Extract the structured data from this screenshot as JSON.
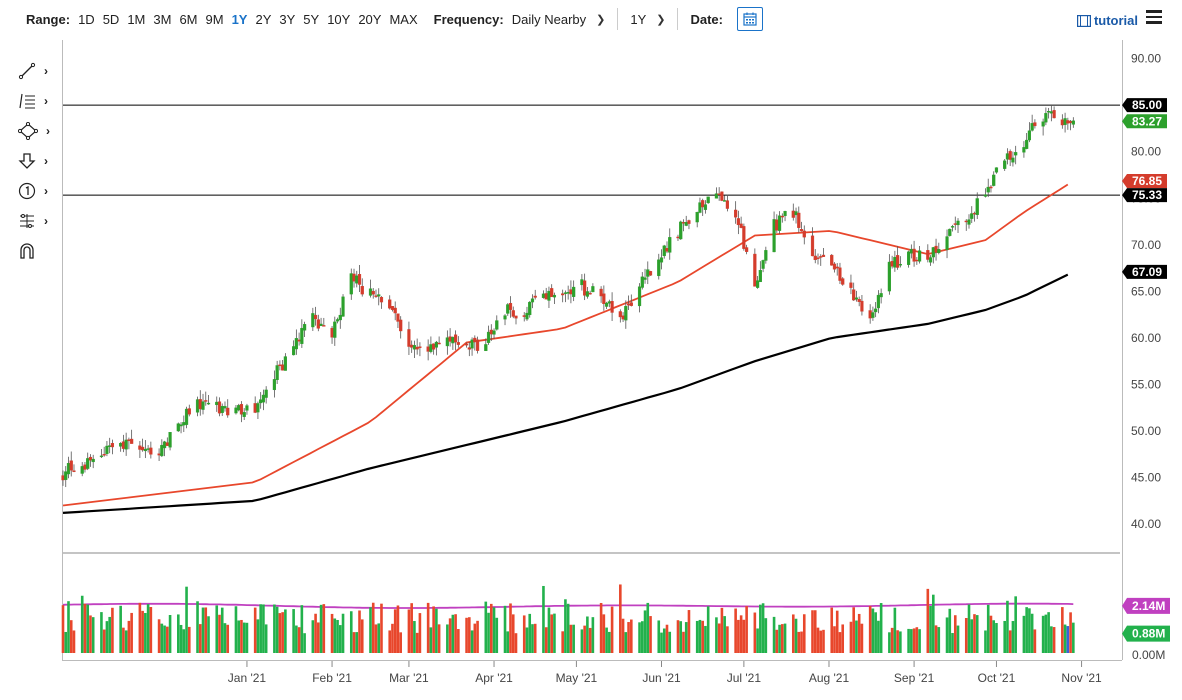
{
  "toolbar": {
    "range_label": "Range:",
    "ranges": [
      "1D",
      "5D",
      "1M",
      "3M",
      "6M",
      "9M",
      "1Y",
      "2Y",
      "3Y",
      "5Y",
      "10Y",
      "20Y",
      "MAX"
    ],
    "active_range": "1Y",
    "frequency_label": "Frequency:",
    "frequency_value": "Daily Nearby",
    "period_value": "1Y",
    "date_label": "Date:",
    "tutorial_label": "tutorial"
  },
  "colors": {
    "up": "#2ca02c",
    "down": "#d43c2c",
    "ma50": "#e8472c",
    "ma200": "#000000",
    "volume_avg": "#c040c0",
    "volume_up": "#22b14c",
    "volume_down": "#e8472c",
    "volume_last": "#3a60d8",
    "accent": "#1a73c9"
  },
  "chart_data": {
    "type": "candlestick",
    "x_axis_labels": [
      "Jan '21",
      "Feb '21",
      "Mar '21",
      "Apr '21",
      "May '21",
      "Jun '21",
      "Jul '21",
      "Aug '21",
      "Sep '21",
      "Oct '21",
      "Nov '21"
    ],
    "y_ticks": [
      "90.00",
      "85.00",
      "80.00",
      "75.00",
      "70.00",
      "65.00",
      "60.00",
      "55.00",
      "50.00",
      "45.00",
      "40.00"
    ],
    "ylim": [
      37,
      92
    ],
    "price_keypoints": [
      [
        "Oct 26 '20",
        45.5
      ],
      [
        "Nov 16 '20",
        48.5
      ],
      [
        "Nov 30 '20",
        48.0
      ],
      [
        "Dec 14 '20",
        53.0
      ],
      [
        "Dec 28 '20",
        52.0
      ],
      [
        "Jan 4 '21",
        52.5
      ],
      [
        "Jan 11 '21",
        56.0
      ],
      [
        "Jan 25 '21",
        62.0
      ],
      [
        "Feb 1 '21",
        60.0
      ],
      [
        "Feb 8 '21",
        66.5
      ],
      [
        "Feb 15 '21",
        64.5
      ],
      [
        "Feb 22 '21",
        63.5
      ],
      [
        "Mar 1 '21",
        58.5
      ],
      [
        "Mar 8 '21",
        59.0
      ],
      [
        "Mar 15 '21",
        59.5
      ],
      [
        "Mar 22 '21",
        59.0
      ],
      [
        "Mar 29 '21",
        59.5
      ],
      [
        "Apr 5 '21",
        63.0
      ],
      [
        "Apr 12 '21",
        62.5
      ],
      [
        "Apr 19 '21",
        65.0
      ],
      [
        "Apr 26 '21",
        64.5
      ],
      [
        "May 3 '21",
        65.5
      ],
      [
        "May 10 '21",
        64.5
      ],
      [
        "May 17 '21",
        62.0
      ],
      [
        "May 24 '21",
        65.5
      ],
      [
        "May 31 '21",
        68.5
      ],
      [
        "Jun 7 '21",
        71.5
      ],
      [
        "Jun 14 '21",
        73.5
      ],
      [
        "Jun 21 '21",
        75.5
      ],
      [
        "Jun 28 '21",
        73.5
      ],
      [
        "Jul 5 '21",
        66.0
      ],
      [
        "Jul 12 '21",
        72.0
      ],
      [
        "Jul 19 '21",
        73.5
      ],
      [
        "Jul 26 '21",
        68.5
      ],
      [
        "Aug 2 '21",
        67.5
      ],
      [
        "Aug 9 '21",
        65.0
      ],
      [
        "Aug 16 '21",
        62.0
      ],
      [
        "Aug 23 '21",
        67.5
      ],
      [
        "Aug 30 '21",
        69.0
      ],
      [
        "Sep 6 '21",
        68.5
      ],
      [
        "Sep 13 '21",
        71.5
      ],
      [
        "Sep 20 '21",
        72.5
      ],
      [
        "Sep 27 '21",
        75.5
      ],
      [
        "Oct 4 '21",
        79.0
      ],
      [
        "Oct 11 '21",
        81.0
      ],
      [
        "Oct 18 '21",
        84.0
      ],
      [
        "Oct 25 '21",
        83.27
      ]
    ],
    "ma50_keypoints": [
      [
        "Oct 26 '20",
        42.0
      ],
      [
        "Jan 4 '21",
        44.5
      ],
      [
        "Feb 15 '21",
        51.0
      ],
      [
        "Mar 22 '21",
        59.5
      ],
      [
        "Apr 26 '21",
        61.0
      ],
      [
        "Jun 7 '21",
        66.0
      ],
      [
        "Jul 5 '21",
        71.0
      ],
      [
        "Aug 2 '21",
        71.5
      ],
      [
        "Sep 6 '21",
        69.0
      ],
      [
        "Sep 27 '21",
        70.5
      ],
      [
        "Oct 11 '21",
        73.5
      ],
      [
        "Oct 29 '21",
        76.85
      ]
    ],
    "ma200_keypoints": [
      [
        "Oct 26 '20",
        41.2
      ],
      [
        "Jan 4 '21",
        42.5
      ],
      [
        "Feb 15 '21",
        46.0
      ],
      [
        "Mar 22 '21",
        48.5
      ],
      [
        "Apr 26 '21",
        51.0
      ],
      [
        "Jun 7 '21",
        54.5
      ],
      [
        "Jul 5 '21",
        57.5
      ],
      [
        "Aug 2 '21",
        60.0
      ],
      [
        "Sep 6 '21",
        61.5
      ],
      [
        "Sep 27 '21",
        63.0
      ],
      [
        "Oct 11 '21",
        64.5
      ],
      [
        "Oct 29 '21",
        67.09
      ]
    ],
    "horizontal_lines": [
      85.0,
      75.33
    ],
    "price_labels": [
      {
        "text": "85.00",
        "value": 85.0,
        "style": "black"
      },
      {
        "text": "83.27",
        "value": 83.27,
        "style": "green"
      },
      {
        "text": "76.85",
        "value": 76.85,
        "style": "red"
      },
      {
        "text": "75.33",
        "value": 75.33,
        "style": "black"
      },
      {
        "text": "67.09",
        "value": 67.09,
        "style": "black"
      }
    ],
    "volume": {
      "avg_label": "2.14M",
      "last_label": "0.88M",
      "zero_label": "0.00M",
      "ylim_millions": [
        0,
        4.0
      ],
      "avg_millions": 2.14,
      "last_millions": 0.88
    }
  }
}
